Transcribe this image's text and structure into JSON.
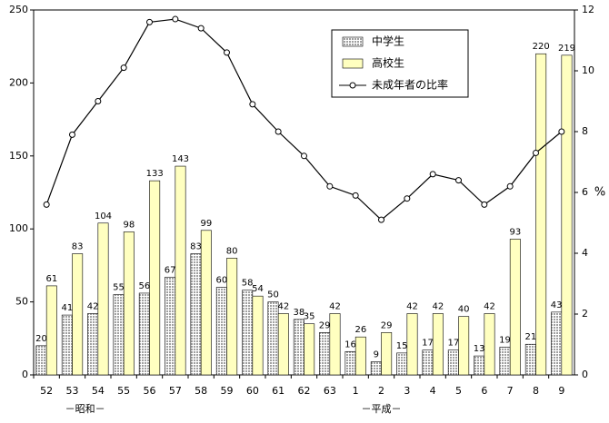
{
  "chart_data": {
    "type": "bar_line",
    "categories": [
      "52",
      "53",
      "54",
      "55",
      "56",
      "57",
      "58",
      "59",
      "60",
      "61",
      "62",
      "63",
      "1",
      "2",
      "3",
      "4",
      "5",
      "6",
      "7",
      "8",
      "9"
    ],
    "series": [
      {
        "name": "中学生",
        "color": "#a0a0a0",
        "type": "bar",
        "values": [
          20,
          41,
          42,
          55,
          56,
          67,
          83,
          60,
          58,
          50,
          38,
          29,
          16,
          9,
          15,
          17,
          17,
          13,
          19,
          21,
          43
        ]
      },
      {
        "name": "高校生",
        "color": "#ffffc0",
        "type": "bar",
        "values": [
          61,
          83,
          104,
          98,
          133,
          143,
          99,
          80,
          54,
          42,
          35,
          42,
          26,
          29,
          42,
          42,
          40,
          42,
          93,
          220,
          219
        ]
      },
      {
        "name": "未成年者の比率",
        "color": "#000000",
        "type": "line",
        "axis": "y2",
        "values": [
          5.6,
          7.9,
          9.0,
          10.1,
          11.6,
          11.7,
          11.4,
          10.6,
          8.9,
          8.0,
          7.2,
          6.2,
          5.9,
          5.1,
          5.8,
          6.6,
          6.4,
          5.6,
          6.2,
          7.3,
          8.0
        ]
      }
    ],
    "ylim": [
      0,
      250
    ],
    "yticks": [
      0,
      50,
      100,
      150,
      200,
      250
    ],
    "y2lim": [
      0,
      12
    ],
    "y2ticks": [
      0,
      2,
      4,
      6,
      8,
      10,
      12
    ],
    "y2_label": "%",
    "era_labels": [
      "－昭和－",
      "－平成－"
    ]
  }
}
